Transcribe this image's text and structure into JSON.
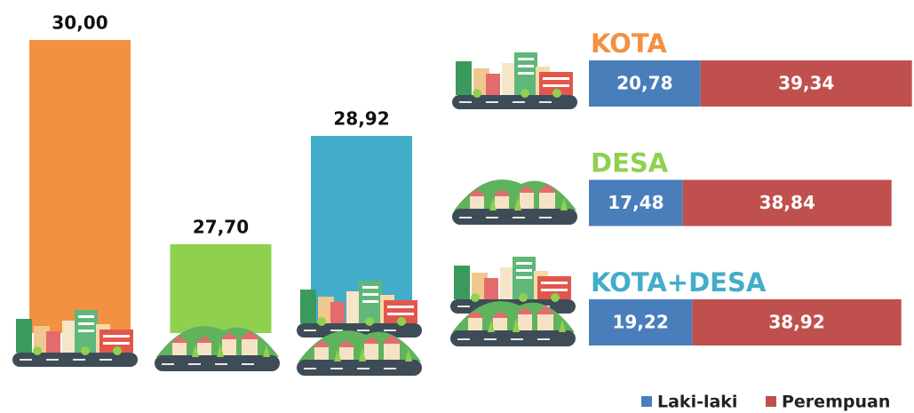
{
  "chart_data": [
    {
      "type": "bar",
      "values": [
        30.0,
        27.7,
        28.92
      ],
      "value_labels": [
        "30,00",
        "27,70",
        "28,92"
      ],
      "colors": [
        "#f39143",
        "#8fd14f",
        "#43adc9"
      ],
      "ylim": [
        26.7,
        30
      ]
    },
    {
      "type": "stacked-barh",
      "categories": [
        "KOTA",
        "DESA",
        "KOTA+DESA"
      ],
      "category_colors": [
        "#f39143",
        "#8fd14f",
        "#43adc9"
      ],
      "series": [
        {
          "name": "Laki-laki",
          "color": "#4a7ebb",
          "values": [
            20.78,
            17.48,
            19.22
          ],
          "value_labels": [
            "20,78",
            "17,48",
            "19,22"
          ]
        },
        {
          "name": "Perempuan",
          "color": "#c0504d",
          "values": [
            39.34,
            38.84,
            38.92
          ],
          "value_labels": [
            "39,34",
            "38,84",
            "38,92"
          ]
        }
      ],
      "xlim": [
        0,
        60.5
      ],
      "legend": "bottom-right"
    }
  ]
}
